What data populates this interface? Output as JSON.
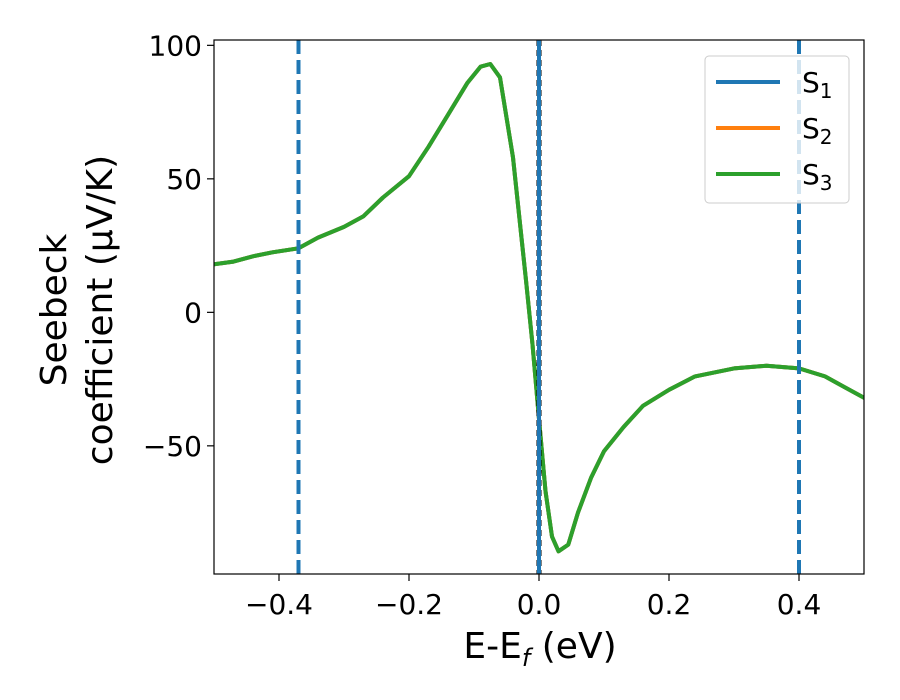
{
  "chart_data": {
    "type": "line",
    "xlabel_main": "E-E",
    "xlabel_sub": "f",
    "xlabel_unit": " (eV)",
    "ylabel_line1": "Seebeck",
    "ylabel_line2": "coefficient  (μV/K)",
    "xlim": [
      -0.5,
      0.5
    ],
    "ylim": [
      -98,
      102
    ],
    "xticks": [
      -0.4,
      -0.2,
      0.0,
      0.2,
      0.4
    ],
    "xtick_labels": [
      "−0.4",
      "−0.2",
      "0.0",
      "0.2",
      "0.4"
    ],
    "yticks": [
      100,
      50,
      0,
      -50
    ],
    "ytick_labels": [
      "100",
      "50",
      "0",
      "−50"
    ],
    "grid": false,
    "legend_position": "top-right",
    "x": [
      -0.5,
      -0.47,
      -0.44,
      -0.41,
      -0.37,
      -0.34,
      -0.3,
      -0.27,
      -0.24,
      -0.2,
      -0.17,
      -0.14,
      -0.11,
      -0.09,
      -0.075,
      -0.06,
      -0.04,
      -0.03,
      -0.02,
      -0.01,
      0.0,
      0.01,
      0.02,
      0.03,
      0.045,
      0.06,
      0.08,
      0.1,
      0.13,
      0.16,
      0.2,
      0.24,
      0.3,
      0.35,
      0.4,
      0.44,
      0.47,
      0.5
    ],
    "series": [
      {
        "name": "S",
        "sub": "1",
        "color": "#1f77b4",
        "values": [
          18,
          19,
          21,
          22.5,
          24,
          28,
          32,
          36,
          43,
          51,
          62,
          74,
          86,
          92,
          93,
          88,
          58,
          35,
          12,
          -12,
          -40,
          -67,
          -84,
          -89.5,
          -87,
          -75,
          -62,
          -52,
          -43,
          -35,
          -29,
          -24,
          -21,
          -20,
          -21,
          -24,
          -28,
          -32
        ]
      },
      {
        "name": "S",
        "sub": "2",
        "color": "#ff7f0e",
        "values": [
          18,
          19,
          21,
          22.5,
          24,
          28,
          32,
          36,
          43,
          51,
          62,
          74,
          86,
          92,
          93,
          88,
          58,
          35,
          12,
          -12,
          -40,
          -67,
          -84,
          -89.5,
          -87,
          -75,
          -62,
          -52,
          -43,
          -35,
          -29,
          -24,
          -21,
          -20,
          -21,
          -24,
          -28,
          -32
        ]
      },
      {
        "name": "S",
        "sub": "3",
        "color": "#2ca02c",
        "values": [
          18,
          19,
          21,
          22.5,
          24,
          28,
          32,
          36,
          43,
          51,
          62,
          74,
          86,
          92,
          93,
          88,
          58,
          35,
          12,
          -12,
          -40,
          -67,
          -84,
          -89.5,
          -87,
          -75,
          -62,
          -52,
          -43,
          -35,
          -29,
          -24,
          -21,
          -20,
          -21,
          -24,
          -28,
          -32
        ]
      }
    ],
    "vlines": [
      {
        "x": -0.37,
        "color": "#1f77b4",
        "style": "dashed"
      },
      {
        "x": 0.0,
        "color": "#000000",
        "style": "dotted"
      },
      {
        "x": 0.0,
        "color": "#1f77b4",
        "style": "solid"
      },
      {
        "x": 0.4,
        "color": "#1f77b4",
        "style": "dashed"
      }
    ]
  }
}
